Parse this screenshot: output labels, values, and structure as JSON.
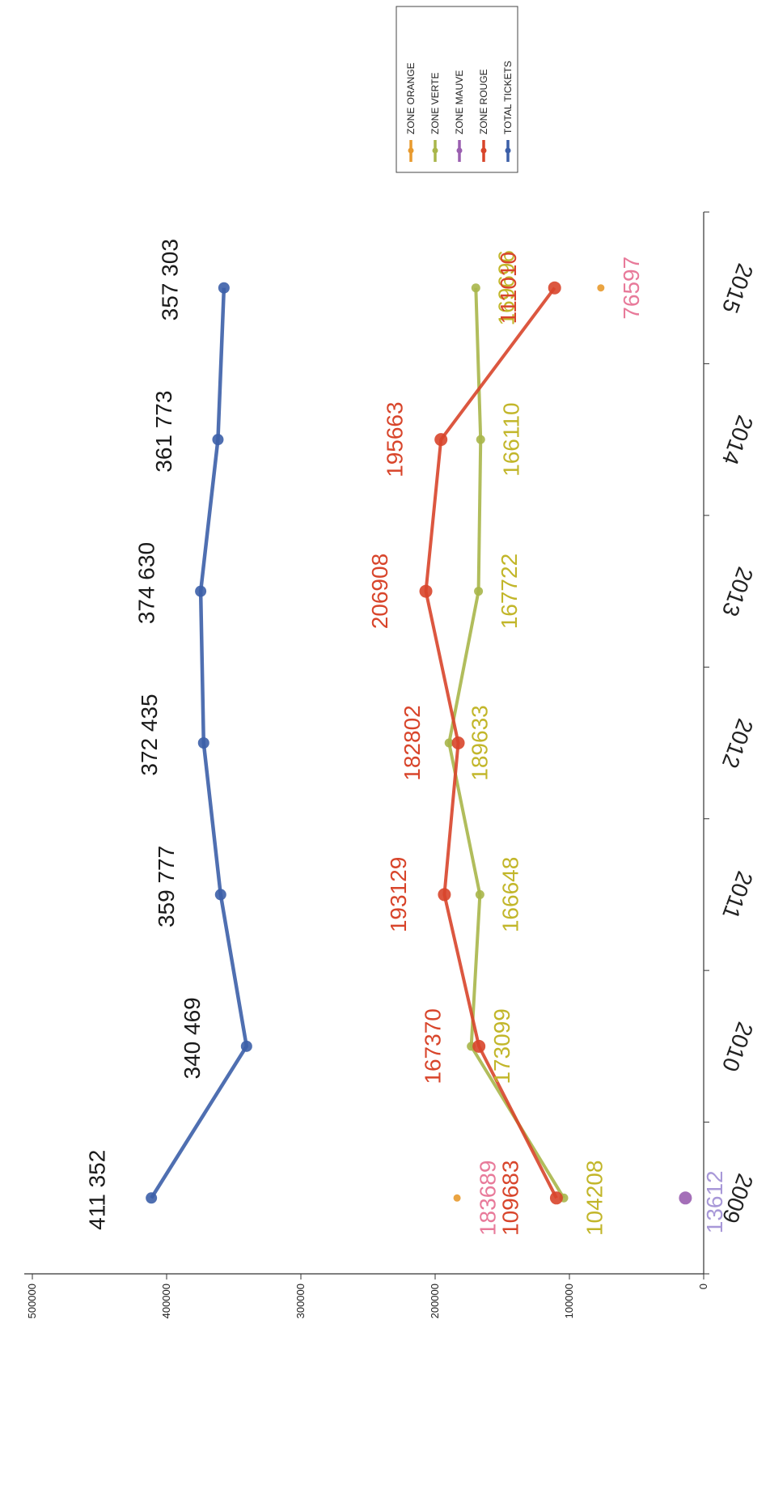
{
  "chart_data": {
    "type": "line",
    "orientation": "rotated-90",
    "title": "",
    "xlabel": "",
    "ylabel": "",
    "categories": [
      "2009",
      "2010",
      "2011",
      "2012",
      "2013",
      "2014",
      "2015"
    ],
    "y_ticks": [
      "0",
      "100000",
      "200000",
      "300000",
      "400000",
      "500000"
    ],
    "ylim": [
      0,
      500000
    ],
    "legend": {
      "placement": "top-right"
    },
    "series": [
      {
        "name": "ZONE ORANGE",
        "color": "#e89a2e",
        "values": [
          183689,
          null,
          null,
          null,
          null,
          null,
          76597
        ],
        "markers_only": true
      },
      {
        "name": "ZONE VERTE",
        "color": "#a9b64a",
        "values": [
          104208,
          173099,
          166648,
          189633,
          167722,
          166110,
          169696
        ]
      },
      {
        "name": "ZONE MAUVE",
        "color": "#9a5fb0",
        "values": [
          13612,
          null,
          null,
          null,
          null,
          null,
          null
        ]
      },
      {
        "name": "ZONE ROUGE",
        "color": "#d8452b",
        "values": [
          109683,
          167370,
          193129,
          182802,
          206908,
          195663,
          111010
        ]
      },
      {
        "name": "TOTAL TICKETS",
        "color": "#3c5fa8",
        "values": [
          411352,
          340469,
          359777,
          372435,
          374630,
          361773,
          357303
        ]
      }
    ],
    "data_labels": {
      "TOTAL TICKETS": [
        "411 352",
        "340 469",
        "359 777",
        "372 435",
        "374 630",
        "361 773",
        "357 303"
      ],
      "ZONE ROUGE": [
        "109683",
        "167370",
        "193129",
        "182802",
        "206908",
        "195663",
        "111010"
      ],
      "ZONE VERTE": [
        "104208",
        "173099",
        "166648",
        "189633",
        "167722",
        "166110",
        "169696"
      ],
      "ZONE ORANGE": [
        "183689",
        "",
        "",
        "",
        "",
        "",
        "76597"
      ],
      "ZONE MAUVE": [
        "13612",
        "",
        "",
        "",
        "",
        "",
        ""
      ]
    },
    "data_label_colors": {
      "TOTAL TICKETS": "#1a1a1a",
      "ZONE ROUGE": "#d8452b",
      "ZONE VERTE": "#c2b62a",
      "ZONE ORANGE": "#e87a9a",
      "ZONE MAUVE": "#a898d8"
    }
  }
}
